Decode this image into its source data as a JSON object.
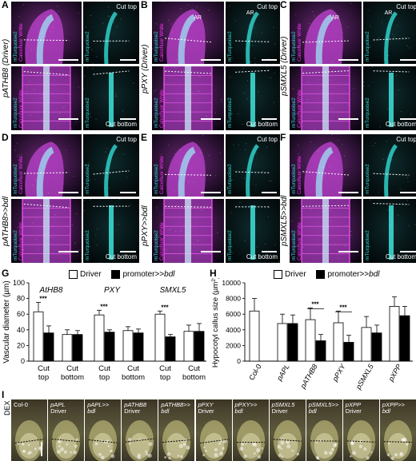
{
  "panels": {
    "A": {
      "letter": "A",
      "row_label": "pATHB8 (Driver)"
    },
    "B": {
      "letter": "B",
      "row_label": "pPXY (Driver)"
    },
    "C": {
      "letter": "C",
      "row_label": "pSMXL5 (Driver)"
    },
    "D": {
      "letter": "D",
      "row_label": "pATHB8>>bdl"
    },
    "E": {
      "letter": "E",
      "row_label": "pPXY>>bdl"
    },
    "F": {
      "letter": "F",
      "row_label": "pSMXL5>>bdl"
    }
  },
  "image_labels": {
    "cut_top": "Cut top",
    "cut_bottom": "Cut bottom",
    "ar": "AR",
    "channel_merged_1": "mTurquoise2",
    "channel_merged_2": "Calcofluor White",
    "channel_single": "mTurquoise2"
  },
  "colors": {
    "calcofluor": "#ff33ff",
    "mturquoise": "#30ddd6",
    "driver_bar": "#ffffff",
    "bdl_bar": "#000000"
  },
  "chart_G": {
    "letter": "G",
    "chart_data": {
      "type": "bar",
      "ylabel": "Vascular diameter (µm)",
      "ylim": [
        0,
        100
      ],
      "yticks": [
        0,
        20,
        40,
        60,
        80,
        100
      ],
      "legend": {
        "driver": "Driver",
        "bdl_prefix": "promoter>>",
        "bdl_suffix": "bdl"
      },
      "groups": [
        {
          "name": "AtHB8",
          "categories": [
            {
              "label": [
                "Cut",
                "top"
              ],
              "driver": 63,
              "driver_err": 12,
              "bdl": 36,
              "bdl_err": 9,
              "sig": "***"
            },
            {
              "label": [
                "Cut",
                "bottom"
              ],
              "driver": 34,
              "driver_err": 6,
              "bdl": 34,
              "bdl_err": 5,
              "sig": ""
            }
          ]
        },
        {
          "name": "PXY",
          "categories": [
            {
              "label": [
                "Cut",
                "top"
              ],
              "driver": 59,
              "driver_err": 6,
              "bdl": 37,
              "bdl_err": 3,
              "sig": "***"
            },
            {
              "label": [
                "Cut",
                "bottom"
              ],
              "driver": 39,
              "driver_err": 5,
              "bdl": 36,
              "bdl_err": 5,
              "sig": ""
            }
          ]
        },
        {
          "name": "SMXL5",
          "categories": [
            {
              "label": [
                "Cut",
                "top"
              ],
              "driver": 60,
              "driver_err": 4,
              "bdl": 31,
              "bdl_err": 3,
              "sig": "***"
            },
            {
              "label": [
                "Cut",
                "bottom"
              ],
              "driver": 38,
              "driver_err": 8,
              "bdl": 38,
              "bdl_err": 10,
              "sig": ""
            }
          ]
        }
      ]
    }
  },
  "chart_H": {
    "letter": "H",
    "chart_data": {
      "type": "bar",
      "ylabel_text": "Hypocotyl callus size (µm",
      "ylabel_sup": "2",
      "ylabel_close": ")",
      "ylim": [
        0,
        10000
      ],
      "yticks": [
        0,
        2000,
        4000,
        6000,
        8000,
        10000
      ],
      "legend": {
        "driver": "Driver",
        "bdl_prefix": "promoter>>",
        "bdl_suffix": "bdl"
      },
      "categories": [
        {
          "label": "Col-0",
          "italic": false,
          "driver": 6400,
          "driver_err": 1600,
          "bdl": null,
          "bdl_err": null,
          "sig": ""
        },
        {
          "label": "pAPL",
          "italic": true,
          "driver": 4800,
          "driver_err": 1200,
          "bdl": 4800,
          "bdl_err": 1100,
          "sig": ""
        },
        {
          "label": "pATHB8",
          "italic": true,
          "driver": 5300,
          "driver_err": 1500,
          "bdl": 2600,
          "bdl_err": 800,
          "sig": "***"
        },
        {
          "label": "pPXY",
          "italic": true,
          "driver": 4900,
          "driver_err": 1500,
          "bdl": 2400,
          "bdl_err": 900,
          "sig": "***"
        },
        {
          "label": "pSMXL5",
          "italic": true,
          "driver": 4300,
          "driver_err": 1400,
          "bdl": 3600,
          "bdl_err": 1000,
          "sig": ""
        },
        {
          "label": "pXPP",
          "italic": true,
          "driver": 7000,
          "driver_err": 1200,
          "bdl": 5800,
          "bdl_err": 1200,
          "sig": ""
        }
      ]
    }
  },
  "panel_I": {
    "letter": "I",
    "side_label": "DEX",
    "tiles": [
      {
        "line1": "Col-0",
        "line2": ""
      },
      {
        "line1": "pAPL",
        "line2": "Driver"
      },
      {
        "line1": "pAPL>>",
        "line2": "bdl"
      },
      {
        "line1": "pATHB8",
        "line2": "Driver"
      },
      {
        "line1": "pATHB8>>",
        "line2": "bdl"
      },
      {
        "line1": "pPXY",
        "line2": "Driver"
      },
      {
        "line1": "pPXY>>",
        "line2": "bdl"
      },
      {
        "line1": "pSMXL5",
        "line2": "Driver"
      },
      {
        "line1": "pSMXL5>>",
        "line2": "bdl"
      },
      {
        "line1": "pXPP",
        "line2": "Driver"
      },
      {
        "line1": "pXPP>>",
        "line2": "bdl"
      }
    ]
  }
}
